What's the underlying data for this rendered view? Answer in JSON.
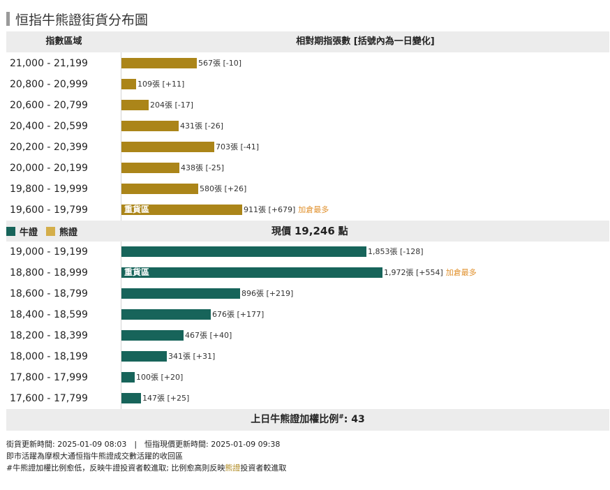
{
  "title": "恒指牛熊證街貨分布圖",
  "header": {
    "range_col": "指數區域",
    "value_col": "相對期指張數 [括號內為一日變化]"
  },
  "colors": {
    "bear": "#ab8519",
    "bull": "#17645a",
    "most": "#e0902c",
    "legend_bear": "#d4ae4a"
  },
  "chart_data": {
    "type": "bar",
    "orientation": "horizontal",
    "title": "恒指牛熊證街貨分布圖",
    "unit": "張",
    "max_value": 1972,
    "series": [
      {
        "name": "熊證",
        "categories": [
          "21,000 - 21,199",
          "20,800 - 20,999",
          "20,600 - 20,799",
          "20,400 - 20,599",
          "20,200 - 20,399",
          "20,000 - 20,199",
          "19,800 - 19,999",
          "19,600 - 19,799"
        ],
        "values": [
          567,
          109,
          204,
          431,
          703,
          438,
          580,
          911
        ],
        "changes": [
          "-10",
          "+11",
          "-17",
          "-26",
          "-41",
          "-25",
          "+26",
          "+679"
        ],
        "labels": [
          "567張 [-10]",
          "109張 [+11]",
          "204張 [-17]",
          "431張 [-26]",
          "703張 [-41]",
          "438張 [-25]",
          "580張 [+26]",
          "911張 [+679]"
        ],
        "heavy_index": 7,
        "most_index": 7
      },
      {
        "name": "牛證",
        "categories": [
          "19,000 - 19,199",
          "18,800 - 18,999",
          "18,600 - 18,799",
          "18,400 - 18,599",
          "18,200 - 18,399",
          "18,000 - 18,199",
          "17,800 - 17,999",
          "17,600 - 17,799"
        ],
        "values": [
          1853,
          1972,
          896,
          676,
          467,
          341,
          100,
          147
        ],
        "changes": [
          "-128",
          "+554",
          "+219",
          "+177",
          "+40",
          "+31",
          "+20",
          "+25"
        ],
        "labels": [
          "1,853張 [-128]",
          "1,972張 [+554]",
          "896張 [+219]",
          "676張 [+177]",
          "467張 [+40]",
          "341張 [+31]",
          "100張 [+20]",
          "147張 [+25]"
        ],
        "heavy_index": 1,
        "most_index": 1
      }
    ]
  },
  "heavy_label": "重貨區",
  "most_label": "加倉最多",
  "legend": {
    "bull": "牛證",
    "bear": "熊證"
  },
  "current_price": {
    "label": "現價",
    "value": "19,246",
    "unit": "點"
  },
  "ratio": {
    "label": "上日牛熊證加權比例",
    "mark": "#",
    "value": ": 43"
  },
  "notes": {
    "line1": "街貨更新時間: 2025-01-09 08:03　|　恒指現價更新時間: 2025-01-09 09:38",
    "line2": "即市活躍為摩根大通恒指牛熊證成交數活躍的收回區",
    "line3a": "#牛熊證加權比例愈低，反映牛證投資者較進取; 比例愈高則反映",
    "line3b": "熊證",
    "line3c": "投資者較進取"
  }
}
